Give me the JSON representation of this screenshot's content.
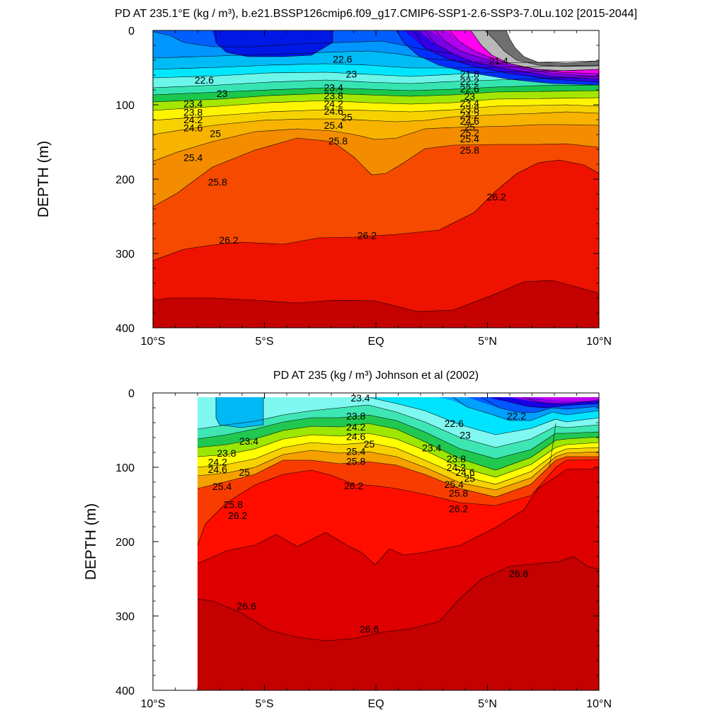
{
  "chart_data": [
    {
      "type": "contour",
      "title": "PD AT 235.1°E (kg / m³), b.e21.BSSP126cmip6.f09_g17.CMIP6-SSP1-2.6-SSP3-7.0Lu.102 [2015-2044]",
      "xlabel": "",
      "ylabel": "DEPTH (m)",
      "xlim": [
        -10,
        10
      ],
      "ylim": [
        400,
        0
      ],
      "x_ticks": [
        -10,
        -5,
        0,
        5,
        10
      ],
      "x_tick_labels": [
        "10°S",
        "5°S",
        "EQ",
        "5°N",
        "10°N"
      ],
      "y_ticks": [
        0,
        100,
        200,
        300,
        400
      ],
      "y_tick_labels": [
        "0",
        "100",
        "200",
        "300",
        "400"
      ],
      "data_x_range": [
        -10,
        10
      ],
      "contour_labels": [
        {
          "text": "22.6",
          "x": -7.7,
          "y": 68
        },
        {
          "text": "23",
          "x": -6.9,
          "y": 86
        },
        {
          "text": "23.4",
          "x": -8.2,
          "y": 100
        },
        {
          "text": "23.8",
          "x": -8.2,
          "y": 111
        },
        {
          "text": "24.2",
          "x": -8.2,
          "y": 121
        },
        {
          "text": "24.6",
          "x": -8.2,
          "y": 132
        },
        {
          "text": "25",
          "x": -7.2,
          "y": 140
        },
        {
          "text": "25.4",
          "x": -8.2,
          "y": 172
        },
        {
          "text": "25.8",
          "x": -7.1,
          "y": 205
        },
        {
          "text": "26.2",
          "x": -6.6,
          "y": 283
        },
        {
          "text": "22.6",
          "x": -1.5,
          "y": 40
        },
        {
          "text": "23",
          "x": -1.1,
          "y": 60
        },
        {
          "text": "23.4",
          "x": -1.9,
          "y": 78
        },
        {
          "text": "23.8",
          "x": -1.9,
          "y": 89
        },
        {
          "text": "24.2",
          "x": -1.9,
          "y": 100
        },
        {
          "text": "24.6",
          "x": -1.9,
          "y": 110
        },
        {
          "text": "25",
          "x": -1.3,
          "y": 118
        },
        {
          "text": "25.4",
          "x": -1.9,
          "y": 129
        },
        {
          "text": "25.8",
          "x": -1.7,
          "y": 150
        },
        {
          "text": "26.2",
          "x": -0.4,
          "y": 277
        },
        {
          "text": "21.4",
          "x": 5.5,
          "y": 42
        },
        {
          "text": "21.8",
          "x": 4.2,
          "y": 60
        },
        {
          "text": "22.2",
          "x": 4.2,
          "y": 70
        },
        {
          "text": "22.6",
          "x": 4.2,
          "y": 80
        },
        {
          "text": "23",
          "x": 4.2,
          "y": 90
        },
        {
          "text": "23.4",
          "x": 4.2,
          "y": 99
        },
        {
          "text": "23.8",
          "x": 4.2,
          "y": 107
        },
        {
          "text": "24.2",
          "x": 4.2,
          "y": 115
        },
        {
          "text": "24.6",
          "x": 4.2,
          "y": 123
        },
        {
          "text": "25",
          "x": 4.2,
          "y": 131
        },
        {
          "text": "25.2",
          "x": 4.2,
          "y": 139
        },
        {
          "text": "25.4",
          "x": 4.2,
          "y": 147
        },
        {
          "text": "25.8",
          "x": 4.2,
          "y": 162
        },
        {
          "text": "26.2",
          "x": 5.4,
          "y": 225
        }
      ]
    },
    {
      "type": "contour",
      "title": "PD AT 235 (kg / m³) Johnson et al (2002)",
      "xlabel": "",
      "ylabel": "DEPTH (m)",
      "xlim": [
        -10,
        10
      ],
      "ylim": [
        400,
        0
      ],
      "x_ticks": [
        -10,
        -5,
        0,
        5,
        10
      ],
      "x_tick_labels": [
        "10°S",
        "5°S",
        "EQ",
        "5°N",
        "10°N"
      ],
      "y_ticks": [
        0,
        100,
        200,
        300,
        400
      ],
      "y_tick_labels": [
        "0",
        "100",
        "200",
        "300",
        "400"
      ],
      "data_x_range": [
        -8,
        10
      ],
      "contour_labels": [
        {
          "text": "23.4",
          "x": -5.7,
          "y": 66
        },
        {
          "text": "23.8",
          "x": -6.7,
          "y": 82
        },
        {
          "text": "24.2",
          "x": -7.1,
          "y": 94
        },
        {
          "text": "24.6",
          "x": -7.1,
          "y": 104
        },
        {
          "text": "25",
          "x": -5.9,
          "y": 108
        },
        {
          "text": "25.4",
          "x": -6.9,
          "y": 127
        },
        {
          "text": "25.8",
          "x": -6.4,
          "y": 151
        },
        {
          "text": "26.2",
          "x": -6.2,
          "y": 166
        },
        {
          "text": "26.6",
          "x": -5.8,
          "y": 288
        },
        {
          "text": "23.4",
          "x": -0.7,
          "y": 8
        },
        {
          "text": "23.8",
          "x": -0.9,
          "y": 32
        },
        {
          "text": "24.2",
          "x": -0.9,
          "y": 47
        },
        {
          "text": "24.6",
          "x": -0.9,
          "y": 60
        },
        {
          "text": "25",
          "x": -0.3,
          "y": 70
        },
        {
          "text": "25.4",
          "x": -0.9,
          "y": 80
        },
        {
          "text": "25.8",
          "x": -0.9,
          "y": 93
        },
        {
          "text": "26.2",
          "x": -1.0,
          "y": 126
        },
        {
          "text": "26.6",
          "x": -0.3,
          "y": 319
        },
        {
          "text": "22.2",
          "x": 6.3,
          "y": 32
        },
        {
          "text": "22.6",
          "x": 3.5,
          "y": 42
        },
        {
          "text": "23",
          "x": 4.0,
          "y": 58
        },
        {
          "text": "23.4",
          "x": 2.5,
          "y": 75
        },
        {
          "text": "23.8",
          "x": 3.6,
          "y": 90
        },
        {
          "text": "24.2",
          "x": 3.6,
          "y": 101
        },
        {
          "text": "24.6",
          "x": 4.0,
          "y": 108
        },
        {
          "text": "25",
          "x": 4.2,
          "y": 116
        },
        {
          "text": "25.4",
          "x": 3.5,
          "y": 124
        },
        {
          "text": "25.8",
          "x": 3.7,
          "y": 136
        },
        {
          "text": "26.2",
          "x": 3.7,
          "y": 157
        },
        {
          "text": "26.6",
          "x": 6.4,
          "y": 244
        }
      ]
    }
  ]
}
